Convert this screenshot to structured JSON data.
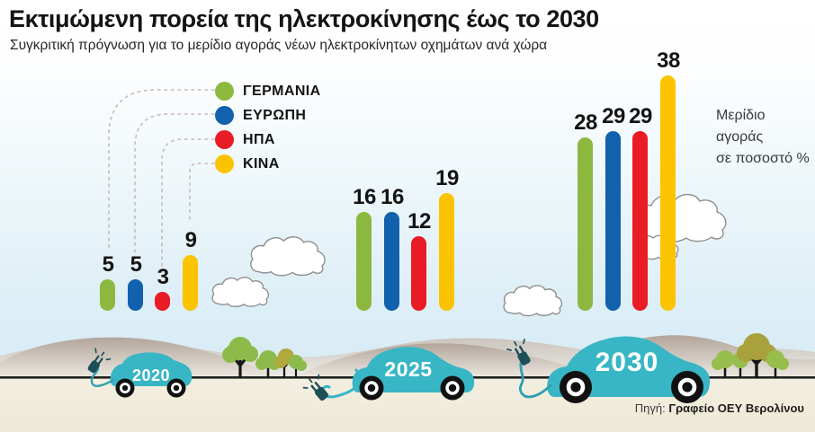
{
  "header": {
    "title": "Εκτιμώμενη πορεία της ηλεκτροκίνησης έως το 2030",
    "subtitle": "Συγκριτική πρόγνωση για το μερίδιο αγοράς νέων ηλεκτροκίνητων οχημάτων ανά χώρα"
  },
  "unit_note": {
    "lines": [
      "Μερίδιο",
      "αγοράς",
      "σε ποσοστό %"
    ]
  },
  "source": {
    "prefix": "Πηγή:",
    "name": "Γραφείο ΟΕΥ Βερολίνου"
  },
  "chart_data": {
    "type": "bar",
    "title": "Εκτιμώμενη πορεία της ηλεκτροκίνησης έως το 2030",
    "subtitle": "Συγκριτική πρόγνωση για το μερίδιο αγοράς νέων ηλεκτροκίνητων οχημάτων ανά χώρα",
    "categories": [
      "2020",
      "2025",
      "2030"
    ],
    "series": [
      {
        "name": "ΓΕΡΜΑΝΙΑ",
        "color": "#8db840",
        "values": [
          5,
          16,
          28
        ]
      },
      {
        "name": "ΕΥΡΩΠΗ",
        "color": "#1161ad",
        "values": [
          5,
          16,
          29
        ]
      },
      {
        "name": "ΗΠΑ",
        "color": "#e91c25",
        "values": [
          3,
          12,
          29
        ]
      },
      {
        "name": "ΚΙΝΑ",
        "color": "#fcc400",
        "values": [
          9,
          19,
          38
        ]
      }
    ],
    "ylabel": "Μερίδιο αγοράς σε ποσοστό %",
    "ylim": [
      0,
      40
    ],
    "grid": false,
    "legend_position": "upper-left",
    "value_labels": true
  },
  "colors": {
    "car": "#38b6c5",
    "plug": "#1c4f58",
    "road": "#20201e",
    "connector_dash": "#c9b9b4"
  }
}
